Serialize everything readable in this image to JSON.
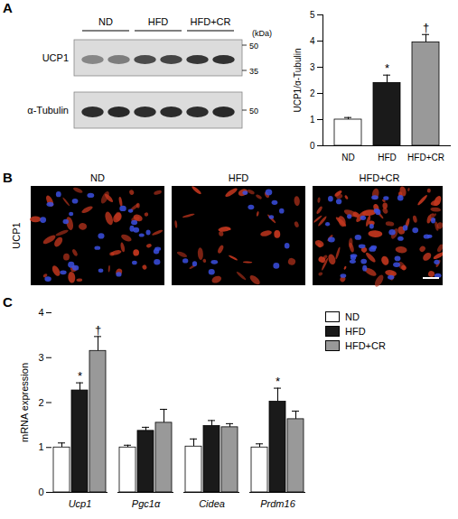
{
  "panel_labels": [
    "A",
    "B",
    "C"
  ],
  "blot": {
    "groups": [
      "ND",
      "HFD",
      "HFD+CR"
    ],
    "rows": [
      "UCP1",
      "α-Tubulin"
    ],
    "unit": "(kDa)",
    "markers": [
      [
        50,
        35
      ],
      [
        50
      ]
    ]
  },
  "images": {
    "stain": "UCP1",
    "groups": [
      "ND",
      "HFD",
      "HFD+CR"
    ]
  },
  "chart_data": [
    {
      "type": "bar",
      "categories": [
        "ND",
        "HFD",
        "HFD+CR"
      ],
      "values": [
        1.0,
        2.4,
        3.95
      ],
      "errors": [
        0.08,
        0.3,
        0.3
      ],
      "annotations": [
        null,
        "*",
        "†"
      ],
      "colors": [
        "#ffffff",
        "#1a1a1a",
        "#999999"
      ],
      "ylabel": "UCP1/α-Tubulin",
      "ylim": [
        0,
        5
      ],
      "yticks": [
        0,
        1,
        2,
        3,
        4,
        5
      ]
    },
    {
      "type": "bar",
      "categories": [
        "Ucp1",
        "Pgc1α",
        "Cidea",
        "Prdm16"
      ],
      "series": [
        {
          "name": "ND",
          "color": "#ffffff",
          "values": [
            1.0,
            1.0,
            1.02,
            1.0
          ],
          "errors": [
            0.1,
            0.05,
            0.17,
            0.08
          ]
        },
        {
          "name": "HFD",
          "color": "#1a1a1a",
          "values": [
            2.27,
            1.37,
            1.48,
            2.02
          ],
          "errors": [
            0.17,
            0.08,
            0.12,
            0.3
          ],
          "annotations": [
            "*",
            null,
            null,
            "*"
          ]
        },
        {
          "name": "HFD+CR",
          "color": "#999999",
          "values": [
            3.15,
            1.55,
            1.45,
            1.63
          ],
          "errors": [
            0.32,
            0.3,
            0.08,
            0.18
          ],
          "annotations": [
            "†",
            null,
            null,
            null
          ]
        }
      ],
      "ylabel": "mRNA expression",
      "ylim": [
        0,
        4
      ],
      "yticks": [
        0,
        1,
        2,
        3,
        4
      ],
      "legend": "right"
    }
  ]
}
